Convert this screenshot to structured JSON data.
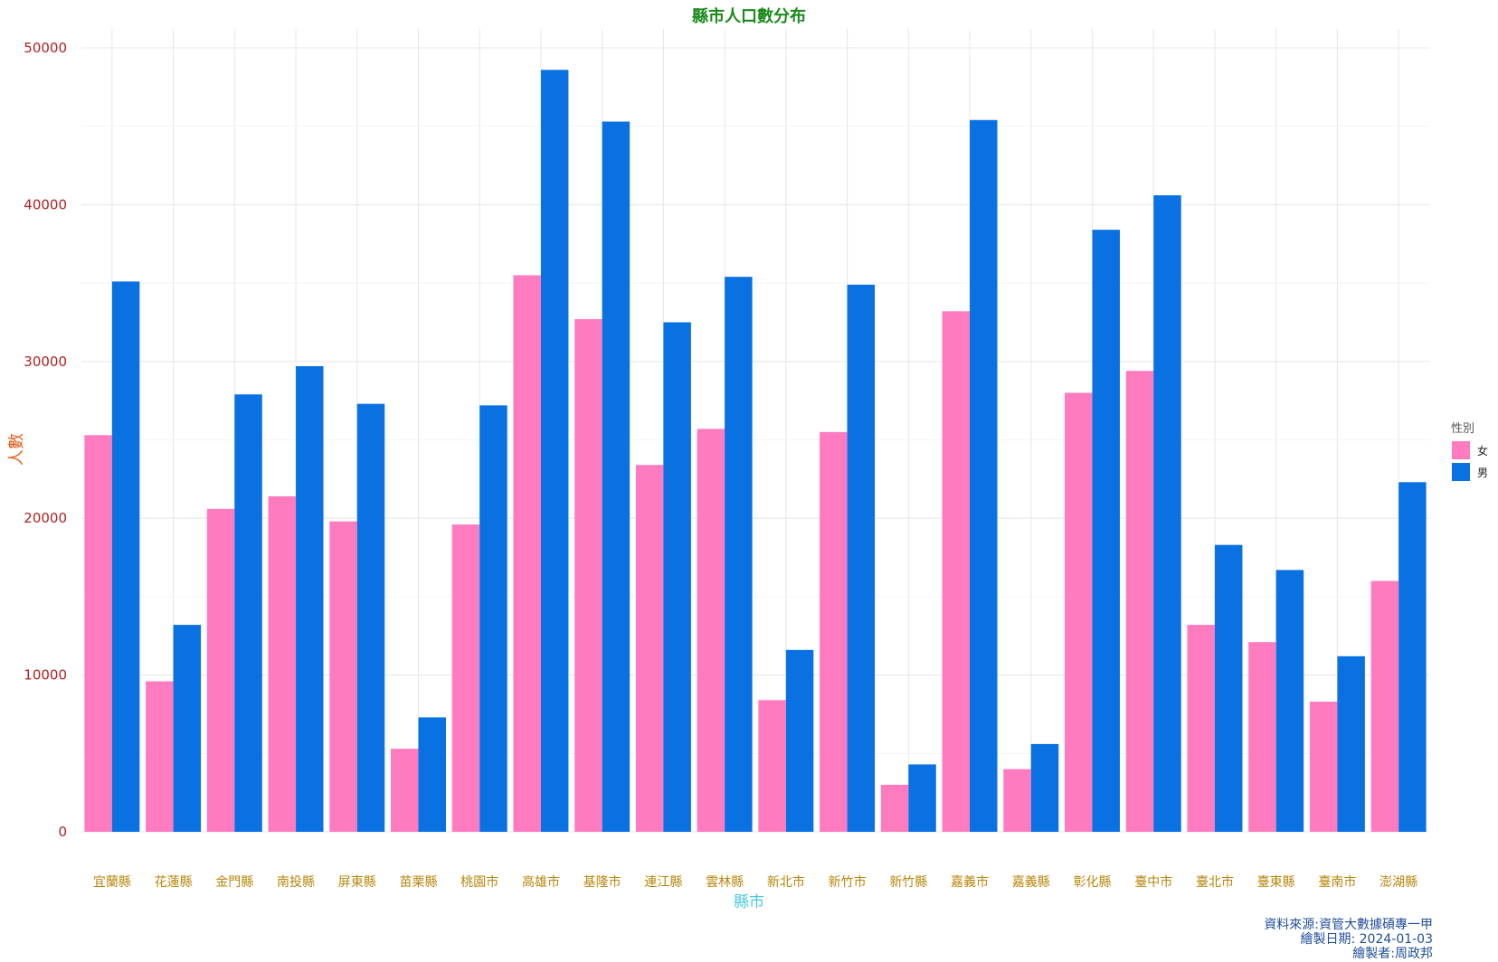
{
  "chart_data": {
    "type": "bar",
    "title": "縣市人口數分布",
    "xlabel": "縣市",
    "ylabel": "人數",
    "ylim": [
      0,
      50000
    ],
    "yticks": [
      0,
      10000,
      20000,
      30000,
      40000,
      50000
    ],
    "grid": true,
    "legend": {
      "title": "性別",
      "placement": "right"
    },
    "categories": [
      "宜蘭縣",
      "花蓮縣",
      "金門縣",
      "南投縣",
      "屏東縣",
      "苗栗縣",
      "桃園市",
      "高雄市",
      "基隆市",
      "連江縣",
      "雲林縣",
      "新北市",
      "新竹市",
      "新竹縣",
      "嘉義市",
      "嘉義縣",
      "彰化縣",
      "臺中市",
      "臺北市",
      "臺東縣",
      "臺南市",
      "澎湖縣"
    ],
    "series": [
      {
        "name": "女",
        "color": "#ff7bbf",
        "values": [
          25300,
          9600,
          20600,
          21400,
          19800,
          5300,
          19600,
          35500,
          32700,
          23400,
          25700,
          8400,
          25500,
          3000,
          33200,
          4000,
          28000,
          29400,
          13200,
          12100,
          8300,
          16000
        ]
      },
      {
        "name": "男",
        "color": "#0a71e3",
        "values": [
          35100,
          13200,
          27900,
          29700,
          27300,
          7300,
          27200,
          48600,
          45300,
          32500,
          35400,
          11600,
          34900,
          4300,
          45400,
          5600,
          38400,
          40600,
          18300,
          16700,
          11200,
          22300
        ]
      }
    ],
    "caption": [
      "資料來源:資管大數據碩專一甲",
      "繪製日期: 2024-01-03",
      "繪製者:周政邦"
    ]
  }
}
